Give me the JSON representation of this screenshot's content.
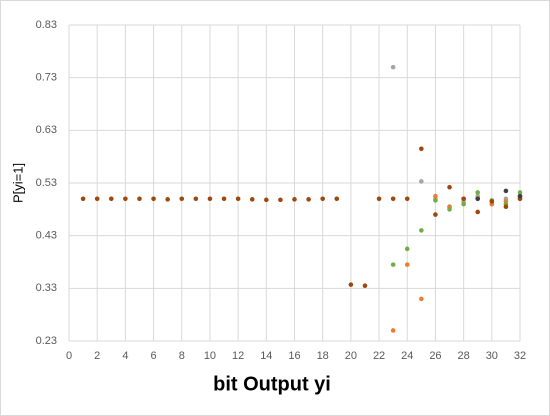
{
  "chart_data": {
    "type": "scatter",
    "x_label": "bit Output yi",
    "y_label": "P[yi=1]",
    "xlim": [
      0,
      32
    ],
    "xticks": [
      0,
      2,
      4,
      6,
      8,
      10,
      12,
      14,
      16,
      18,
      20,
      22,
      24,
      26,
      28,
      30,
      32
    ],
    "ylim": [
      0.23,
      0.83
    ],
    "yticks": [
      0.23,
      0.33,
      0.43,
      0.53,
      0.63,
      0.73,
      0.83
    ],
    "grid": true,
    "series": [
      {
        "color": "#a5a5a5",
        "x": [
          23,
          25,
          26,
          27,
          28,
          29,
          30,
          31,
          32
        ],
        "values": [
          0.75,
          0.533,
          0.5,
          0.485,
          0.495,
          0.505,
          0.49,
          0.5,
          0.5
        ]
      },
      {
        "color": "#ed7d31",
        "x": [
          23,
          24,
          25,
          26,
          27,
          28,
          29,
          30,
          31,
          32
        ],
        "values": [
          0.25,
          0.375,
          0.31,
          0.505,
          0.485,
          0.5,
          0.5,
          0.49,
          0.495,
          0.505
        ]
      },
      {
        "color": "#70ad47",
        "x": [
          23,
          24,
          25,
          26,
          27,
          28,
          29,
          30,
          31,
          32
        ],
        "values": [
          0.375,
          0.405,
          0.44,
          0.497,
          0.48,
          0.49,
          0.512,
          0.497,
          0.49,
          0.512
        ]
      },
      {
        "color": "#9e480e",
        "x": [
          1,
          2,
          3,
          4,
          5,
          6,
          7,
          8,
          9,
          10,
          11,
          12,
          13,
          14,
          15,
          16,
          17,
          18,
          19,
          20,
          21,
          22,
          23,
          24,
          25,
          26,
          27,
          28,
          29,
          30,
          31,
          32
        ],
        "values": [
          0.5,
          0.5,
          0.5,
          0.5,
          0.5,
          0.5,
          0.499,
          0.5,
          0.5,
          0.5,
          0.5,
          0.5,
          0.499,
          0.498,
          0.498,
          0.499,
          0.499,
          0.5,
          0.5,
          0.337,
          0.335,
          0.5,
          0.5,
          0.5,
          0.595,
          0.47,
          0.522,
          0.5,
          0.475,
          0.495,
          0.485,
          0.5
        ]
      },
      {
        "color": "#404040",
        "x": [
          29,
          31,
          32
        ],
        "values": [
          0.5,
          0.515,
          0.505
        ]
      }
    ]
  }
}
